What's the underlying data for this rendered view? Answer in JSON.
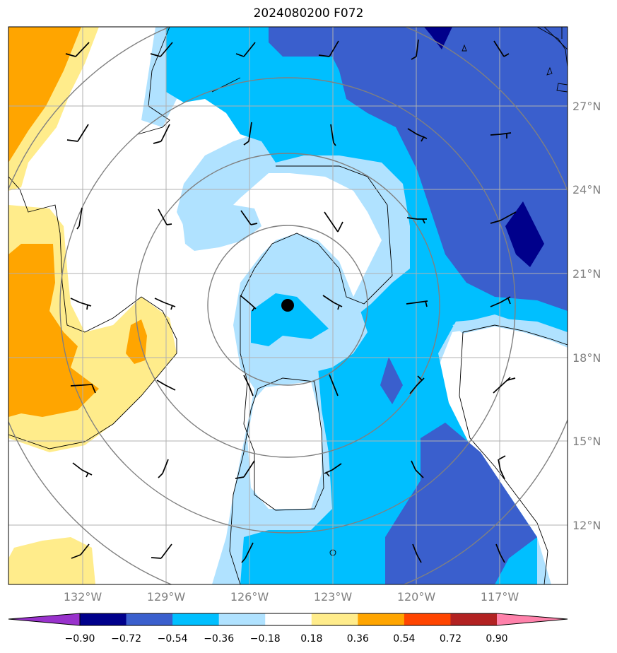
{
  "title": "2024080200 F072",
  "map": {
    "lon_ticks": [
      "132°W",
      "129°W",
      "126°W",
      "123°W",
      "120°W",
      "117°W"
    ],
    "lat_ticks": [
      "27°N",
      "24°N",
      "21°N",
      "18°N",
      "15°N",
      "12°N"
    ],
    "colors": {
      "gridline": "#b0b0b0",
      "range_ring": "#808080",
      "coastline": "#000000",
      "storm_center": "#000000"
    }
  },
  "colorbar": {
    "tick_labels": [
      "−0.90",
      "−0.72",
      "−0.54",
      "−0.36",
      "−0.18",
      "0.18",
      "0.36",
      "0.54",
      "0.72",
      "0.90"
    ],
    "colors": [
      "#9932cc",
      "#00008b",
      "#3a5fcd",
      "#00bfff",
      "#b0e2ff",
      "#ffffff",
      "#ffec8b",
      "#ffa500",
      "#ff4500",
      "#b22222",
      "#ff82ab"
    ]
  }
}
